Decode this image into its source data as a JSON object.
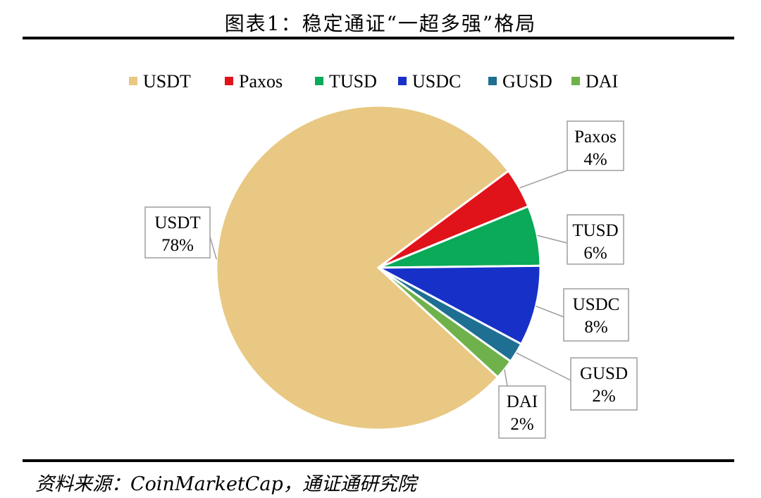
{
  "title": "图表1：稳定通证“一超多强”格局",
  "source": "资料来源：CoinMarketCap，通证通研究院",
  "chart_data": {
    "type": "pie",
    "series": [
      {
        "name": "USDT",
        "value": 78,
        "label": "78%",
        "color": "#e8c882"
      },
      {
        "name": "Paxos",
        "value": 4,
        "label": "4%",
        "color": "#e0131b"
      },
      {
        "name": "TUSD",
        "value": 6,
        "label": "6%",
        "color": "#0aaa58"
      },
      {
        "name": "USDC",
        "value": 8,
        "label": "8%",
        "color": "#1731c8"
      },
      {
        "name": "GUSD",
        "value": 2,
        "label": "2%",
        "color": "#1f6f93"
      },
      {
        "name": "DAI",
        "value": 2,
        "label": "2%",
        "color": "#6fb24b"
      }
    ],
    "legend": "top"
  }
}
